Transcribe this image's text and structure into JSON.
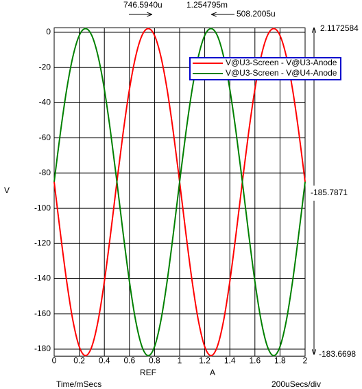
{
  "chart_data": {
    "type": "line",
    "y_label": "V",
    "x_label": "Time/mSecs",
    "x_scale_label": "200uSecs/div",
    "x": [
      0,
      0.05,
      0.1,
      0.15,
      0.2,
      0.25,
      0.3,
      0.35,
      0.4,
      0.45,
      0.5,
      0.55,
      0.6,
      0.65,
      0.7,
      0.75,
      0.8,
      0.85,
      0.9,
      0.95,
      1,
      1.05,
      1.1,
      1.15,
      1.2,
      1.25,
      1.3,
      1.35,
      1.4,
      1.45,
      1.5,
      1.55,
      1.6,
      1.65,
      1.7,
      1.75,
      1.8,
      1.85,
      1.9,
      1.95,
      2
    ],
    "series": [
      {
        "name": "V@U3-Screen - V@U3-Anode",
        "color": "#ff0000",
        "values": [
          -85.0,
          -114.3,
          -141.6,
          -164.0,
          -178.6,
          -183.7,
          -178.6,
          -164.0,
          -141.6,
          -114.3,
          -85.0,
          -56.9,
          -32.4,
          -13.6,
          -1.8,
          2.1,
          -1.8,
          -13.6,
          -32.4,
          -56.9,
          -85.0,
          -114.3,
          -141.6,
          -164.0,
          -178.6,
          -183.7,
          -178.6,
          -164.0,
          -141.6,
          -114.3,
          -85.0,
          -56.9,
          -32.4,
          -13.6,
          -1.8,
          2.1,
          -1.8,
          -13.6,
          -32.4,
          -56.9,
          -85.0
        ]
      },
      {
        "name": "V@U3-Screen - V@U4-Anode",
        "color": "#008000",
        "values": [
          -85.0,
          -56.9,
          -32.4,
          -13.6,
          -1.8,
          2.1,
          -1.8,
          -13.6,
          -32.4,
          -56.9,
          -85.0,
          -114.3,
          -141.6,
          -164.0,
          -178.6,
          -183.7,
          -178.6,
          -164.0,
          -141.6,
          -114.3,
          -85.0,
          -56.9,
          -32.4,
          -13.6,
          -1.8,
          2.1,
          -1.8,
          -13.6,
          -32.4,
          -56.9,
          -85.0,
          -114.3,
          -141.6,
          -164.0,
          -178.6,
          -183.7,
          -178.6,
          -164.0,
          -141.6,
          -114.3,
          -85.0
        ]
      }
    ],
    "xlim": [
      0,
      2
    ],
    "xticks": [
      0,
      0.2,
      0.4,
      0.6,
      0.8,
      1,
      1.2,
      1.4,
      1.6,
      1.8,
      2
    ],
    "ylim": [
      -184,
      2.5
    ],
    "yticks": [
      0,
      -20,
      -40,
      -60,
      -80,
      -100,
      -120,
      -140,
      -160,
      -180
    ],
    "grid": true,
    "legend": "top-right",
    "annotations": {
      "cursor_ref_x": "746.5940u",
      "cursor_a_x": "1.254795m",
      "cursor_diff_x": "508.2005u",
      "cursor_ref_label": "REF",
      "cursor_a_label": "A",
      "y_top": "2.1172584",
      "y_diff": "-185.7871",
      "y_bottom": "-183.6698"
    }
  }
}
